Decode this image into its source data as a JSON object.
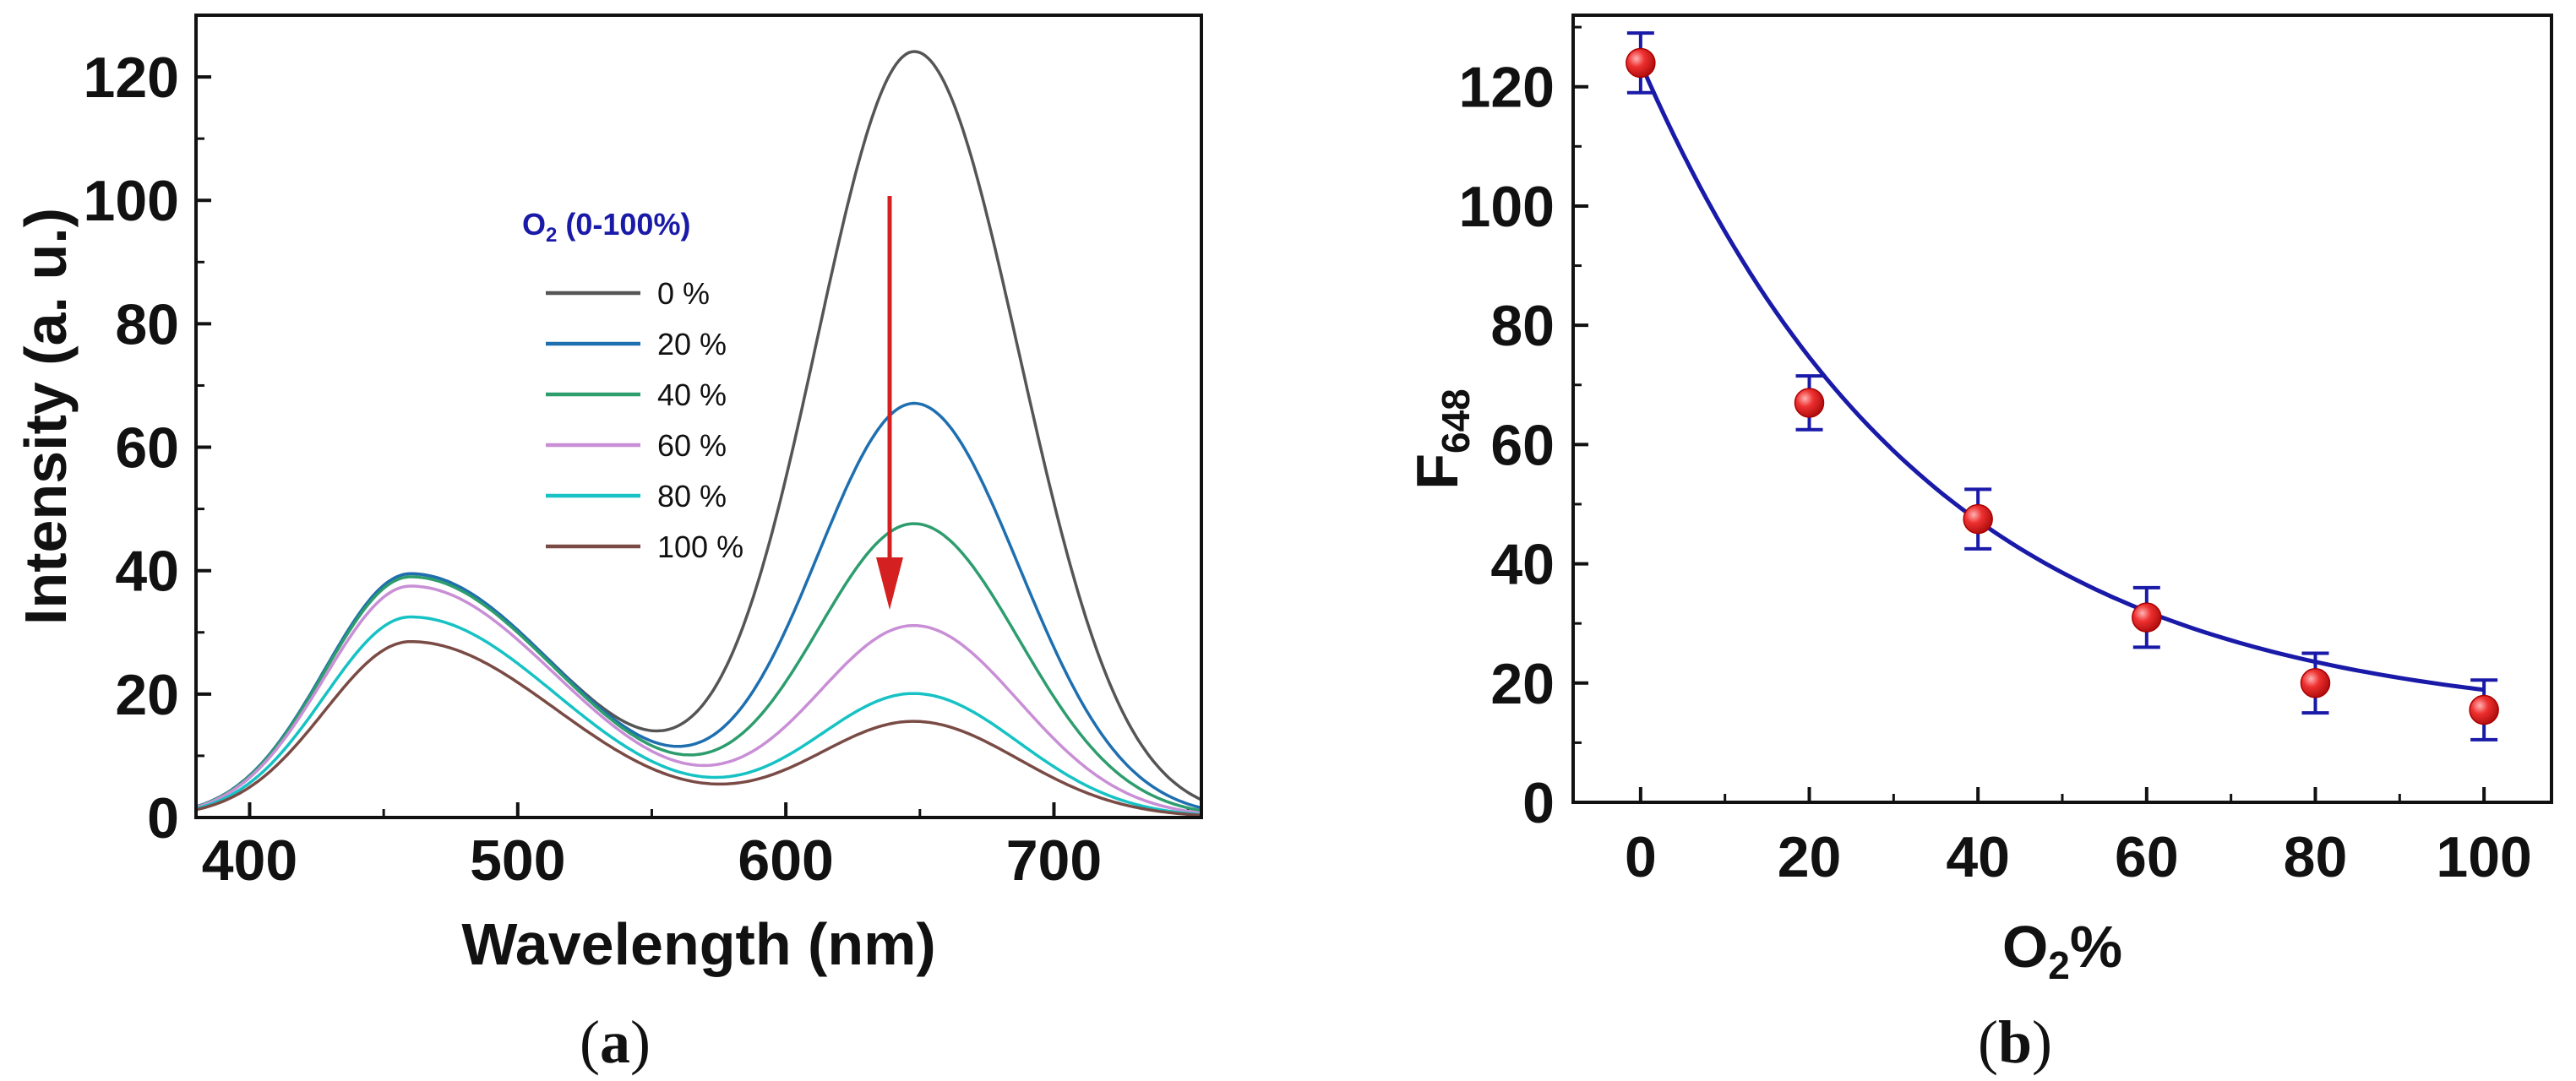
{
  "chart_data": [
    {
      "type": "line",
      "panel_label_open": "(",
      "panel_label_letter": "a",
      "panel_label_close": ")",
      "xlabel": "Wavelength (nm)",
      "ylabel": "Intensity (a. u.)",
      "xlim": [
        380,
        755
      ],
      "ylim": [
        0,
        130
      ],
      "xticks": [
        400,
        500,
        600,
        700
      ],
      "yticks": [
        0,
        20,
        40,
        60,
        80,
        100,
        120
      ],
      "legend_title_main": "O",
      "legend_title_sub": "2",
      "legend_title_rest": "  (0-100%)",
      "legend_position": "center",
      "annotation": "red downward arrow near 640 nm indicating intensity decrease with increasing O2",
      "arrow_color": "#d42020",
      "series": [
        {
          "name": "0 %",
          "color": "#555555",
          "peak1": 39.5,
          "peak2": 124
        },
        {
          "name": "20 %",
          "color": "#1e6fb0",
          "peak1": 39.5,
          "peak2": 67
        },
        {
          "name": "40 %",
          "color": "#2e9d6e",
          "peak1": 39,
          "peak2": 47.5
        },
        {
          "name": "60 %",
          "color": "#c98fd6",
          "peak1": 37.5,
          "peak2": 31
        },
        {
          "name": "80 %",
          "color": "#16c2c4",
          "peak1": 32.5,
          "peak2": 20
        },
        {
          "name": "100 %",
          "color": "#7a4b45",
          "peak1": 28.5,
          "peak2": 15.5
        }
      ]
    },
    {
      "type": "scatter",
      "panel_label_open": "(",
      "panel_label_letter": "b",
      "panel_label_close": ")",
      "xlabel_main": "O",
      "xlabel_sub": "2",
      "xlabel_rest": "%",
      "ylabel_main": "F",
      "ylabel_sub": "648",
      "xlim": [
        -8,
        108
      ],
      "ylim": [
        0,
        132
      ],
      "xticks": [
        0,
        20,
        40,
        60,
        80,
        100
      ],
      "yticks": [
        0,
        20,
        40,
        60,
        80,
        100,
        120
      ],
      "x": [
        0,
        20,
        40,
        60,
        80,
        100
      ],
      "y": [
        124,
        67,
        47.5,
        31,
        20,
        15.5
      ],
      "error": [
        5,
        4.5,
        5,
        5,
        5,
        5
      ],
      "fit": {
        "type": "exponential decay",
        "y0": 13,
        "A": 111,
        "t": 34,
        "color": "#1a1aa8"
      },
      "marker_color": "#e8262d",
      "errorbar_color": "#1a1aa8"
    }
  ]
}
